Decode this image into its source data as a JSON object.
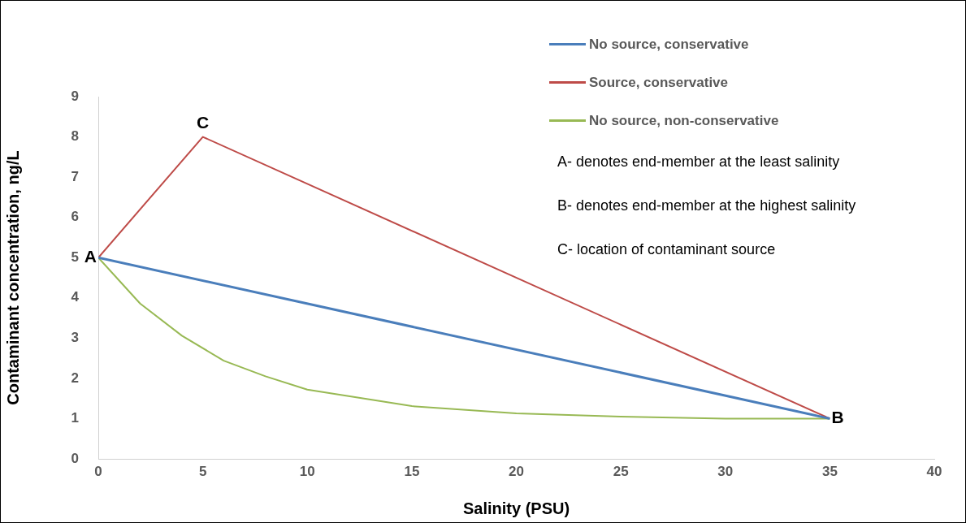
{
  "chart_data": {
    "type": "line",
    "xlabel": "Salinity (PSU)",
    "ylabel": "Contaminant concentration, ng/L",
    "xlim": [
      0,
      40
    ],
    "xticks": [
      0,
      5,
      10,
      15,
      20,
      25,
      30,
      35,
      40
    ],
    "ylim": [
      0,
      9
    ],
    "yticks": [
      0,
      1,
      2,
      3,
      4,
      5,
      6,
      7,
      8,
      9
    ],
    "grid": false,
    "legend": "top right",
    "marker": "none",
    "series": [
      {
        "name": "No source, conservative",
        "color": "#4a7ebb",
        "x": [
          0,
          35
        ],
        "values": [
          5,
          1
        ]
      },
      {
        "name": "Source, conservative",
        "color": "#be4b48",
        "x": [
          0,
          5,
          35
        ],
        "values": [
          5,
          8,
          1
        ]
      },
      {
        "name": "No source, non-conservative",
        "color": "#98b954",
        "x": [
          0,
          2,
          4,
          6,
          8,
          10,
          15,
          20,
          25,
          30,
          35
        ],
        "values": [
          5,
          3.86,
          3.06,
          2.44,
          2.05,
          1.72,
          1.31,
          1.13,
          1.05,
          1.0,
          1.0
        ]
      }
    ],
    "annotations": [
      {
        "text": "A",
        "x": 0,
        "y": 5
      },
      {
        "text": "B",
        "x": 35,
        "y": 1
      },
      {
        "text": "C",
        "x": 5,
        "y": 8
      },
      "A- denotes end-member at the least salinity",
      "B- denotes end-member at the highest salinity",
      "C- location of contaminant source"
    ]
  }
}
